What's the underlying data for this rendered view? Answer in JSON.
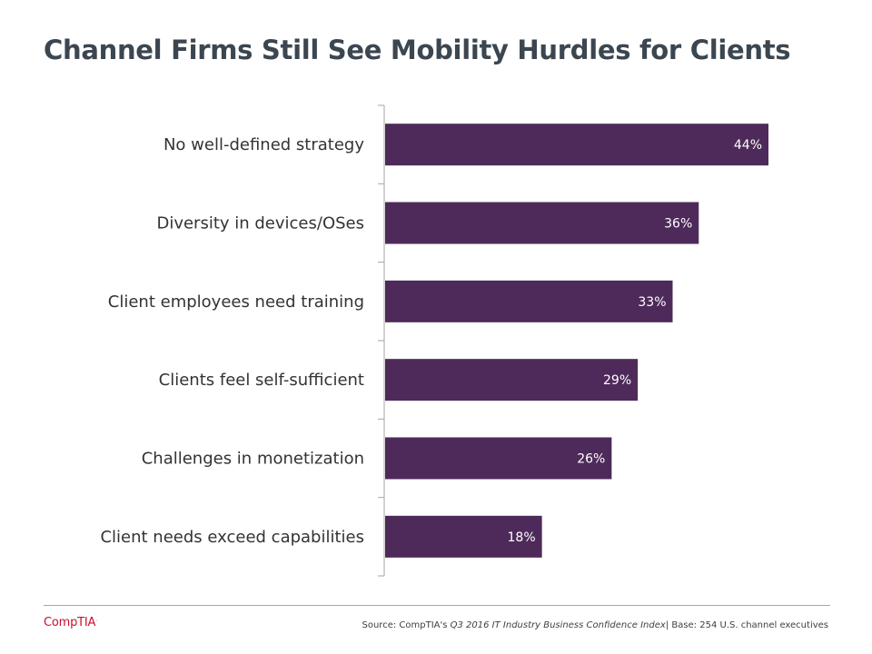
{
  "chart_data": {
    "type": "bar",
    "orientation": "horizontal",
    "title": "Channel Firms Still See Mobility Hurdles for Clients",
    "categories": [
      "No well-defined strategy",
      "Diversity in devices/OSes",
      "Client employees need training",
      "Clients feel self-sufficient",
      "Challenges in monetization",
      "Client needs exceed capabilities"
    ],
    "values": [
      44,
      36,
      33,
      29,
      26,
      18
    ],
    "data_labels": [
      "44%",
      "36%",
      "33%",
      "29%",
      "26%",
      "18%"
    ],
    "bar_color": "#4e2a5a",
    "xlim": [
      0,
      50
    ],
    "grid": false,
    "legend": "none"
  },
  "footer": {
    "logo": "CompTIA",
    "source_prefix": "Source: CompTIA's",
    "source_title": "Q3 2016  IT Industry Business Confidence Index",
    "source_suffix": "| Base: 254 U.S. channel executives"
  },
  "colors": {
    "title": "#3b4650",
    "logo": "#c8102e"
  }
}
